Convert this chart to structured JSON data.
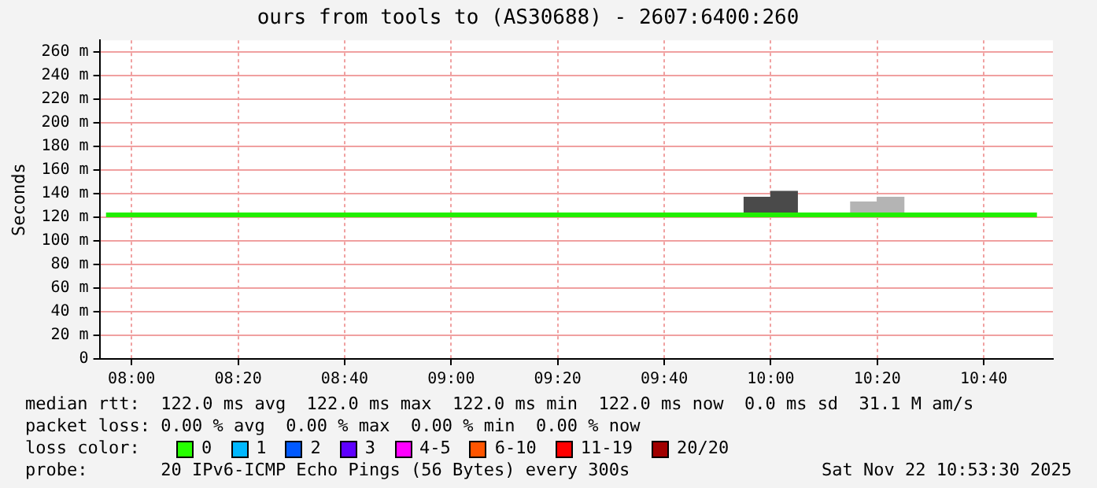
{
  "chart_data": {
    "type": "line",
    "title": "ours from tools to (AS30688) - 2607:6400:260",
    "ylabel": "Seconds",
    "xlim": [
      7.9,
      10.883
    ],
    "xticks": [
      {
        "value": 8,
        "label": "08:00"
      },
      {
        "value": 8.3333,
        "label": "08:20"
      },
      {
        "value": 8.6667,
        "label": "08:40"
      },
      {
        "value": 9,
        "label": "09:00"
      },
      {
        "value": 9.3333,
        "label": "09:20"
      },
      {
        "value": 9.6667,
        "label": "09:40"
      },
      {
        "value": 10,
        "label": "10:00"
      },
      {
        "value": 10.3333,
        "label": "10:20"
      },
      {
        "value": 10.6667,
        "label": "10:40"
      }
    ],
    "ylim": [
      0,
      270
    ],
    "yticks": [
      0,
      {
        "value": 20,
        "label": "20 m"
      },
      {
        "value": 40,
        "label": "40 m"
      },
      {
        "value": 60,
        "label": "60 m"
      },
      {
        "value": 80,
        "label": "80 m"
      },
      {
        "value": 100,
        "label": "100 m"
      },
      {
        "value": 120,
        "label": "120 m"
      },
      {
        "value": 140,
        "label": "140 m"
      },
      {
        "value": 160,
        "label": "160 m"
      },
      {
        "value": 180,
        "label": "180 m"
      },
      {
        "value": 200,
        "label": "200 m"
      },
      {
        "value": 220,
        "label": "220 m"
      },
      {
        "value": 240,
        "label": "240 m"
      },
      {
        "value": 260,
        "label": "260 m"
      }
    ],
    "grid": true,
    "legend": false,
    "series": [
      {
        "type": "bar",
        "x": [
          9.9583,
          10.0417,
          10.2917,
          10.375
        ],
        "base": [
          122,
          122,
          122,
          122
        ],
        "values": [
          15,
          20,
          11,
          15
        ],
        "colors": [
          "#4a4a4a",
          "#4a4a4a",
          "#b4b4b4",
          "#b4b4b4"
        ]
      },
      {
        "color": "#22ee00",
        "x": [
          7.92,
          10.833
        ],
        "values": [
          122,
          122
        ]
      }
    ],
    "annotations": [
      "median rtt:  122.0 ms avg  122.0 ms max  122.0 ms min  122.0 ms now  0.0 ms sd  31.1 M am/s",
      "packet loss: 0.00 % avg  0.00 % max  0.00 % min  0.00 % now",
      "loss color:",
      "0",
      "1",
      "2",
      "3",
      "4-5",
      "6-10",
      "11-19",
      "20/20",
      "probe:       20 IPv6-ICMP Echo Pings (56 Bytes) every 300s",
      "Sat Nov 22 10:53:30 2025"
    ]
  }
}
